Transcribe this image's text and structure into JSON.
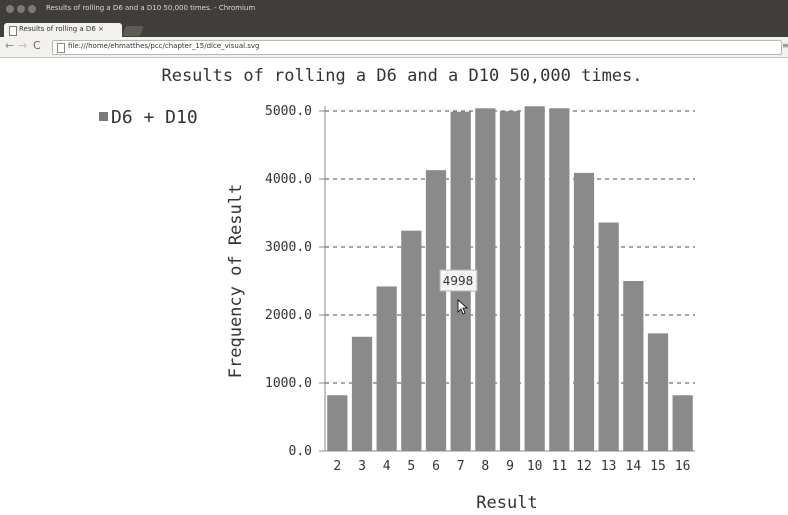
{
  "window": {
    "title": "Results of rolling a D6 and a D10 50,000 times. - Chromium"
  },
  "tab": {
    "label": "Results of rolling a D6 ×",
    "close": "×"
  },
  "toolbar": {
    "url": "file:///home/ehmatthes/pcc/chapter_15/dice_visual.svg"
  },
  "colors": {
    "bar": "#8a8a8a",
    "axis": "#888888",
    "text": "#333333",
    "grid": "#222222",
    "legend": "#7a7a7a"
  },
  "chart_data": {
    "type": "bar",
    "title": "Results of rolling a D6 and a D10 50,000 times.",
    "xlabel": "Result",
    "ylabel": "Frequency of Result",
    "legend": [
      "D6 + D10"
    ],
    "legend_position": "top-left",
    "grid": true,
    "ylim": [
      0,
      5000
    ],
    "yticks": [
      "0.0",
      "1000.0",
      "2000.0",
      "3000.0",
      "4000.0",
      "5000.0"
    ],
    "categories": [
      "2",
      "3",
      "4",
      "5",
      "6",
      "7",
      "8",
      "9",
      "10",
      "11",
      "12",
      "13",
      "14",
      "15",
      "16"
    ],
    "series": [
      {
        "name": "D6 + D10",
        "values": [
          820,
          1680,
          2420,
          3240,
          4130,
          4990,
          5040,
          4998,
          5070,
          5040,
          4090,
          3360,
          2500,
          1730,
          820
        ]
      }
    ],
    "tooltip": {
      "label": "4998"
    }
  }
}
